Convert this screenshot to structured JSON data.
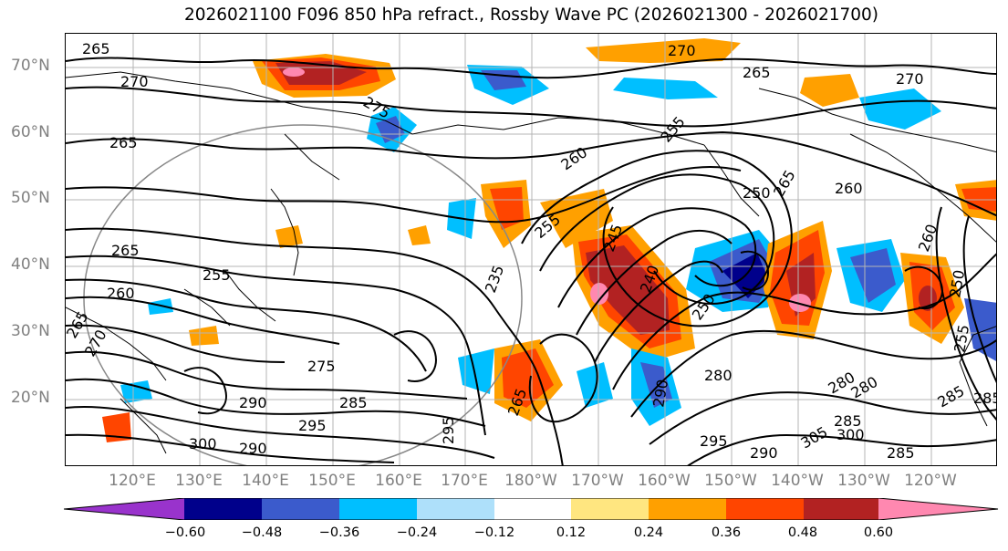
{
  "title": "2026021100 F096 850 hPa refract., Rossby Wave PC (2026021300 - 2026021700)",
  "lat_labels": [
    "70°N",
    "60°N",
    "50°N",
    "40°N",
    "30°N",
    "20°N"
  ],
  "lon_labels": [
    "120°E",
    "130°E",
    "140°E",
    "150°E",
    "160°E",
    "170°E",
    "180°W",
    "170°W",
    "160°W",
    "150°W",
    "140°W",
    "130°W",
    "120°W"
  ],
  "colorbar": {
    "labels": [
      "−0.60",
      "−0.48",
      "−0.36",
      "−0.24",
      "−0.12",
      "0.12",
      "0.24",
      "0.36",
      "0.48",
      "0.60"
    ],
    "colors": [
      "#9933cc",
      "#00008b",
      "#3b5bcc",
      "#00bfff",
      "#aee0fa",
      "#ffffff",
      "#ffe680",
      "#ffa000",
      "#ff4500",
      "#b22222",
      "#ff88b0"
    ]
  },
  "contour_labels": [
    "265",
    "270",
    "275",
    "265",
    "270",
    "270",
    "265",
    "260",
    "255",
    "265",
    "265",
    "260",
    "255",
    "250",
    "245",
    "240",
    "235",
    "250",
    "255",
    "260",
    "265",
    "270",
    "275",
    "280",
    "285",
    "290",
    "295",
    "300",
    "305",
    "280",
    "290",
    "285",
    "295",
    "300",
    "290",
    "285",
    "260",
    "250",
    "255",
    "280",
    "285",
    "290",
    "295",
    "265",
    "285"
  ]
}
